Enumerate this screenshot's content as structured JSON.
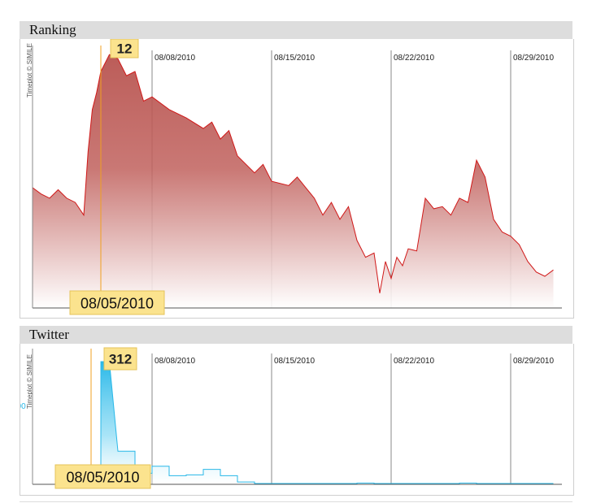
{
  "chart_data": [
    {
      "type": "area",
      "title": "Ranking",
      "credit": "Timeplot © SIMILE",
      "date_ticks": [
        "08/08/2010",
        "08/15/2010",
        "08/22/2010",
        "08/29/2010"
      ],
      "x_start": "2010-08-01",
      "x_end": "2010-09-01",
      "y_inverted": true,
      "color": "#d01818",
      "fill_color": "#b85450",
      "marker": {
        "date": "08/05/2010",
        "value": "12"
      },
      "series": [
        {
          "values": [
            [
              "2010-08-01",
              75
            ],
            [
              "2010-08-01T12",
              78
            ],
            [
              "2010-08-02",
              80
            ],
            [
              "2010-08-02T12",
              76
            ],
            [
              "2010-08-03",
              80
            ],
            [
              "2010-08-03T12",
              82
            ],
            [
              "2010-08-04",
              88
            ],
            [
              "2010-08-04T06",
              58
            ],
            [
              "2010-08-04T12",
              38
            ],
            [
              "2010-08-04T18",
              30
            ],
            [
              "2010-08-05",
              20
            ],
            [
              "2010-08-05T12",
              12
            ],
            [
              "2010-08-06",
              14
            ],
            [
              "2010-08-06T12",
              22
            ],
            [
              "2010-08-07",
              20
            ],
            [
              "2010-08-07T12",
              34
            ],
            [
              "2010-08-08",
              32
            ],
            [
              "2010-08-09",
              38
            ],
            [
              "2010-08-10",
              42
            ],
            [
              "2010-08-11",
              47
            ],
            [
              "2010-08-11T12",
              44
            ],
            [
              "2010-08-12",
              52
            ],
            [
              "2010-08-12T12",
              48
            ],
            [
              "2010-08-13",
              60
            ],
            [
              "2010-08-14",
              68
            ],
            [
              "2010-08-14T12",
              64
            ],
            [
              "2010-08-15",
              72
            ],
            [
              "2010-08-16",
              74
            ],
            [
              "2010-08-16T12",
              70
            ],
            [
              "2010-08-17",
              75
            ],
            [
              "2010-08-17T12",
              80
            ],
            [
              "2010-08-18",
              88
            ],
            [
              "2010-08-18T12",
              82
            ],
            [
              "2010-08-19",
              90
            ],
            [
              "2010-08-19T12",
              84
            ],
            [
              "2010-08-20",
              100
            ],
            [
              "2010-08-20T12",
              108
            ],
            [
              "2010-08-21",
              106
            ],
            [
              "2010-08-21T08",
              125
            ],
            [
              "2010-08-21T16",
              110
            ],
            [
              "2010-08-22",
              118
            ],
            [
              "2010-08-22T08",
              108
            ],
            [
              "2010-08-22T16",
              112
            ],
            [
              "2010-08-23",
              104
            ],
            [
              "2010-08-23T12",
              105
            ],
            [
              "2010-08-24",
              80
            ],
            [
              "2010-08-24T12",
              85
            ],
            [
              "2010-08-25",
              84
            ],
            [
              "2010-08-25T12",
              88
            ],
            [
              "2010-08-26",
              80
            ],
            [
              "2010-08-26T12",
              82
            ],
            [
              "2010-08-27",
              62
            ],
            [
              "2010-08-27T12",
              70
            ],
            [
              "2010-08-28",
              90
            ],
            [
              "2010-08-28T12",
              96
            ],
            [
              "2010-08-29",
              98
            ],
            [
              "2010-08-29T12",
              102
            ],
            [
              "2010-08-30",
              110
            ],
            [
              "2010-08-30T12",
              115
            ],
            [
              "2010-08-31",
              117
            ],
            [
              "2010-08-31T12",
              114
            ]
          ]
        }
      ]
    },
    {
      "type": "area",
      "title": "Twitter",
      "credit": "Timeplot © SIMILE",
      "date_ticks": [
        "08/08/2010",
        "08/15/2010",
        "08/22/2010",
        "08/29/2010"
      ],
      "y_tick": "200",
      "x_start": "2010-08-01",
      "x_end": "2010-09-01",
      "color": "#29b8e8",
      "fill_color": "#29b8e8",
      "marker": {
        "date": "08/05/2010",
        "value": "312"
      },
      "series": [
        {
          "values": [
            [
              "2010-08-01",
              0
            ],
            [
              "2010-08-05",
              0
            ],
            [
              "2010-08-05",
              312
            ],
            [
              "2010-08-05T12",
              312
            ],
            [
              "2010-08-06",
              84
            ],
            [
              "2010-08-07",
              84
            ],
            [
              "2010-08-07",
              28
            ],
            [
              "2010-08-08",
              28
            ],
            [
              "2010-08-08",
              46
            ],
            [
              "2010-08-09",
              46
            ],
            [
              "2010-08-09",
              22
            ],
            [
              "2010-08-10",
              22
            ],
            [
              "2010-08-10",
              24
            ],
            [
              "2010-08-11",
              24
            ],
            [
              "2010-08-11",
              38
            ],
            [
              "2010-08-12",
              38
            ],
            [
              "2010-08-12",
              22
            ],
            [
              "2010-08-13",
              22
            ],
            [
              "2010-08-13",
              6
            ],
            [
              "2010-08-14",
              6
            ],
            [
              "2010-08-14",
              2
            ],
            [
              "2010-08-20",
              2
            ],
            [
              "2010-08-20",
              3
            ],
            [
              "2010-08-21",
              3
            ],
            [
              "2010-08-21",
              2
            ],
            [
              "2010-08-26",
              2
            ],
            [
              "2010-08-26",
              3
            ],
            [
              "2010-08-27",
              3
            ],
            [
              "2010-08-27",
              2
            ],
            [
              "2010-08-31T12",
              2
            ]
          ]
        }
      ]
    }
  ]
}
